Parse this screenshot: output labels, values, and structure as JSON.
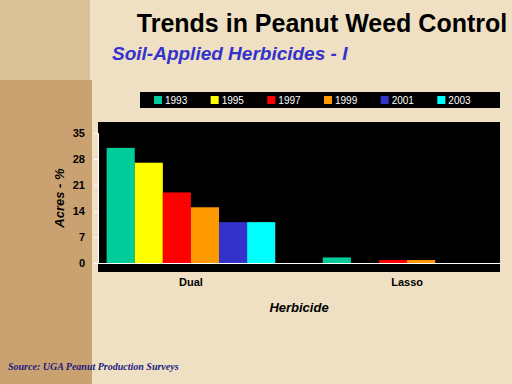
{
  "chart_data": {
    "type": "bar",
    "title": "Trends in Peanut Weed Control",
    "subtitle": "Soil-Applied Herbicides - I",
    "x_label": "Herbicide",
    "y_label": "Acres - %",
    "source": "Source: UGA Peanut Production Surveys",
    "categories": [
      "Dual",
      "Lasso"
    ],
    "series": [
      {
        "name": "1993",
        "color": "#00cc99",
        "values": [
          31,
          1.5
        ]
      },
      {
        "name": "1995",
        "color": "#ffff00",
        "values": [
          27,
          0
        ]
      },
      {
        "name": "1997",
        "color": "#ff0000",
        "values": [
          19,
          0.8
        ]
      },
      {
        "name": "1999",
        "color": "#ff9900",
        "values": [
          15,
          0.8
        ]
      },
      {
        "name": "2001",
        "color": "#3333cc",
        "values": [
          11,
          0
        ]
      },
      {
        "name": "2003",
        "color": "#00ffff",
        "values": [
          11,
          0
        ]
      }
    ],
    "ylim": [
      0,
      35
    ],
    "yticks": [
      0,
      7,
      14,
      21,
      28,
      35
    ],
    "grid": false,
    "legend": "top"
  }
}
